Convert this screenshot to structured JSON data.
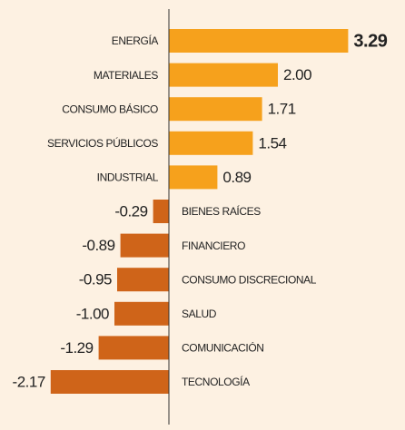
{
  "chart_data": {
    "type": "bar",
    "orientation": "horizontal",
    "categories": [
      "ENERGÍA",
      "MATERIALES",
      "CONSUMO BÁSICO",
      "SERVICIOS PÚBLICOS",
      "INDUSTRIAL",
      "BIENES RAÍCES",
      "FINANCIERO",
      "CONSUMO DISCRECIONAL",
      "SALUD",
      "COMUNICACIÓN",
      "TECNOLOGÍA"
    ],
    "values": [
      3.29,
      2.0,
      1.71,
      1.54,
      0.89,
      -0.29,
      -0.89,
      -0.95,
      -1.0,
      -1.29,
      -2.17
    ],
    "value_labels": [
      "3.29",
      "2.00",
      "1.71",
      "1.54",
      "0.89",
      "-0.29",
      "-0.89",
      "-0.95",
      "-1.00",
      "-1.29",
      "-2.17"
    ],
    "color": "#f6a11c",
    "negative_color": "#cf6419"
  }
}
